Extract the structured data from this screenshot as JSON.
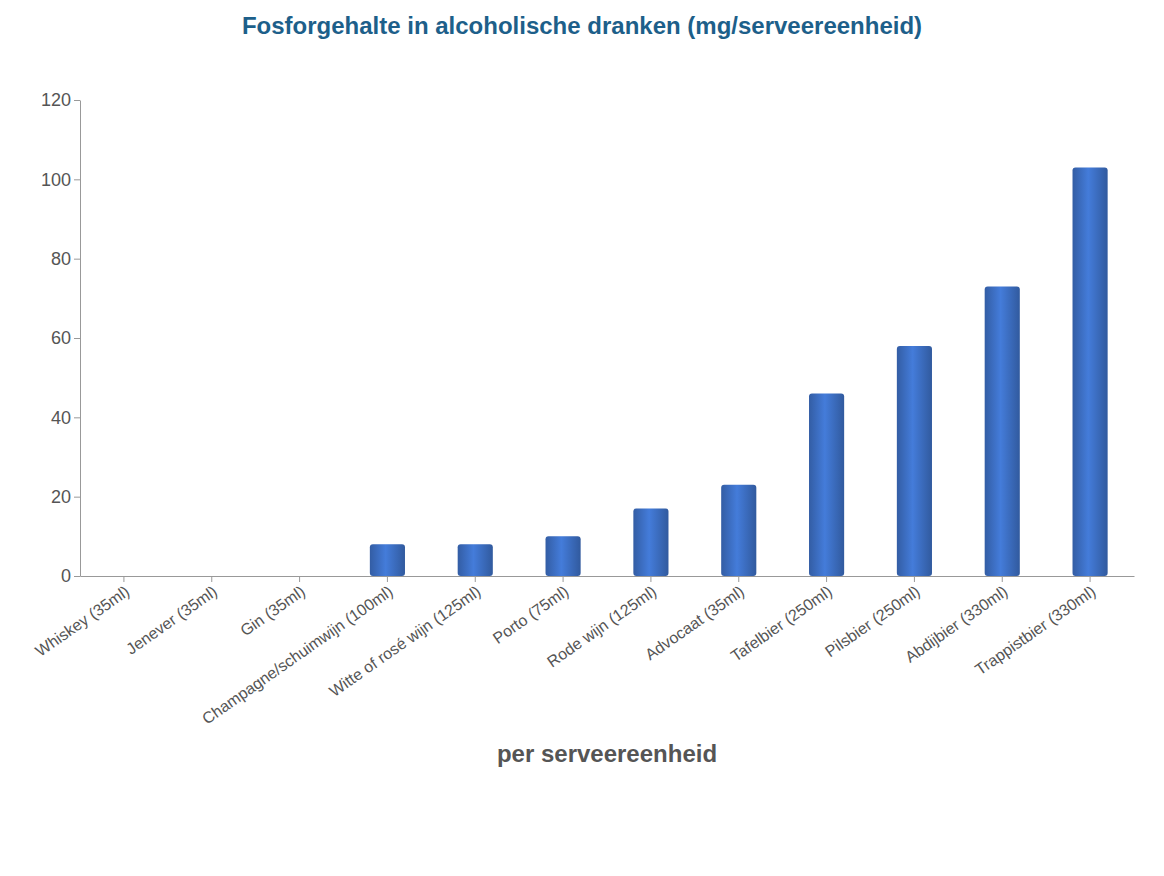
{
  "chart_data": {
    "type": "bar",
    "title": "Fosforgehalte in alcoholische dranken (mg/serveereenheid)",
    "x_label": "per serveereenheid",
    "categories": [
      "Whiskey (35ml)",
      "Jenever (35ml)",
      "Gin (35ml)",
      "Champagne/schuimwijn (100ml)",
      "Witte of rosé wijn (125ml)",
      "Porto (75ml)",
      "Rode wijn (125ml)",
      "Advocaat (35ml)",
      "Tafelbier (250ml)",
      "Pilsbier (250ml)",
      "Abdijbier (330ml)",
      "Trappistbier (330ml)"
    ],
    "values": [
      0,
      0,
      0,
      8,
      8,
      10,
      17,
      23,
      46,
      58,
      73,
      103
    ],
    "color": "#3d6fc4",
    "ylim": [
      0,
      120
    ],
    "yticks": [
      0,
      20,
      40,
      60,
      80,
      100,
      120
    ],
    "grid": false
  }
}
